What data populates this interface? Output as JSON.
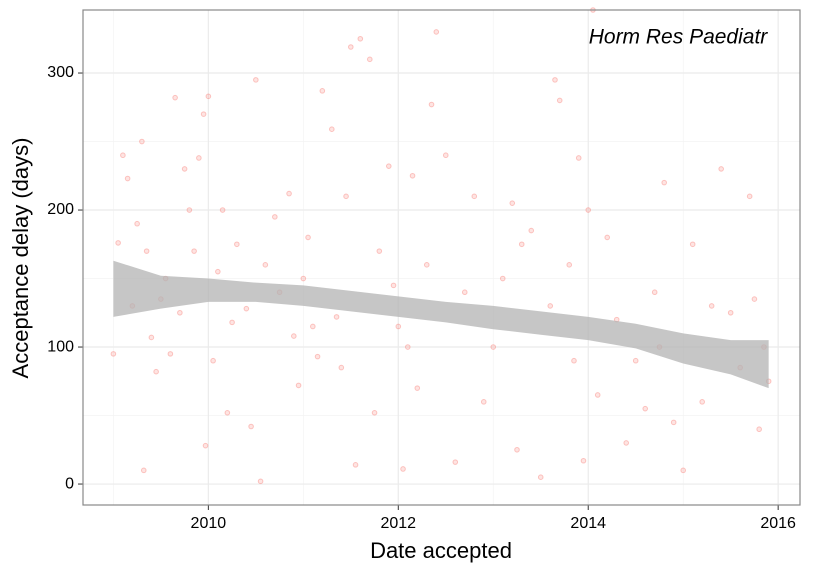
{
  "chart_data": {
    "type": "scatter",
    "annotation": "Horm Res Paediatr",
    "xlabel": "Date accepted",
    "ylabel": "Acceptance delay (days)",
    "xlim": [
      2008.68,
      2016.23
    ],
    "ylim": [
      -15.3,
      346
    ],
    "xticks": [
      2010,
      2012,
      2014,
      2016
    ],
    "yticks": [
      0,
      100,
      200,
      300
    ],
    "xminor": [
      2009,
      2011,
      2013,
      2015
    ],
    "yminor": [
      50,
      150,
      250
    ],
    "grid": true,
    "points": {
      "color": "#f8766d",
      "x": [
        2009.0,
        2009.05,
        2009.1,
        2009.15,
        2009.2,
        2009.25,
        2009.3,
        2009.32,
        2009.35,
        2009.4,
        2009.45,
        2009.5,
        2009.55,
        2009.6,
        2009.65,
        2009.7,
        2009.75,
        2009.8,
        2009.85,
        2009.9,
        2009.95,
        2009.97,
        2010.0,
        2010.05,
        2010.1,
        2010.15,
        2010.2,
        2010.25,
        2010.3,
        2010.4,
        2010.45,
        2010.5,
        2010.55,
        2010.6,
        2010.7,
        2010.75,
        2010.85,
        2010.9,
        2010.95,
        2011.0,
        2011.05,
        2011.1,
        2011.15,
        2011.2,
        2011.3,
        2011.35,
        2011.4,
        2011.45,
        2011.5,
        2011.55,
        2011.6,
        2011.7,
        2011.75,
        2011.8,
        2011.9,
        2011.95,
        2012.0,
        2012.05,
        2012.1,
        2012.15,
        2012.2,
        2012.3,
        2012.35,
        2012.4,
        2012.5,
        2012.6,
        2012.7,
        2012.8,
        2012.9,
        2013.0,
        2013.1,
        2013.2,
        2013.25,
        2013.3,
        2013.4,
        2013.5,
        2013.6,
        2013.65,
        2013.7,
        2013.8,
        2013.85,
        2013.9,
        2013.95,
        2014.0,
        2014.05,
        2014.1,
        2014.2,
        2014.3,
        2014.4,
        2014.5,
        2014.6,
        2014.7,
        2014.75,
        2014.8,
        2014.9,
        2015.0,
        2015.1,
        2015.2,
        2015.3,
        2015.4,
        2015.5,
        2015.6,
        2015.7,
        2015.75,
        2015.8,
        2015.85,
        2015.9
      ],
      "y": [
        95,
        176,
        240,
        223,
        130,
        190,
        250,
        10,
        170,
        107,
        82,
        135,
        150,
        95,
        282,
        125,
        230,
        200,
        170,
        238,
        270,
        28,
        283,
        90,
        155,
        200,
        52,
        118,
        175,
        128,
        42,
        295,
        2,
        160,
        195,
        140,
        212,
        108,
        72,
        150,
        180,
        115,
        93,
        287,
        259,
        122,
        85,
        210,
        319,
        14,
        325,
        310,
        52,
        170,
        232,
        145,
        115,
        11,
        100,
        225,
        70,
        160,
        277,
        330,
        240,
        16,
        140,
        210,
        60,
        100,
        150,
        205,
        25,
        175,
        185,
        5,
        130,
        295,
        280,
        160,
        90,
        238,
        17,
        200,
        346,
        65,
        180,
        120,
        30,
        90,
        55,
        140,
        100,
        220,
        45,
        10,
        175,
        60,
        130,
        230,
        125,
        85,
        210,
        135,
        40,
        100,
        75
      ]
    },
    "band": {
      "color": "#b3b3b3",
      "x": [
        2009.0,
        2009.5,
        2010.0,
        2010.5,
        2011.0,
        2011.5,
        2012.0,
        2012.5,
        2013.0,
        2013.5,
        2014.0,
        2014.5,
        2015.0,
        2015.5,
        2015.9
      ],
      "lower": [
        122,
        128,
        133,
        133,
        130,
        126,
        122,
        118,
        113,
        109,
        105,
        99,
        88,
        80,
        70
      ],
      "upper": [
        163,
        152,
        150,
        147,
        145,
        141,
        137,
        133,
        130,
        126,
        122,
        117,
        110,
        105,
        105
      ]
    }
  }
}
